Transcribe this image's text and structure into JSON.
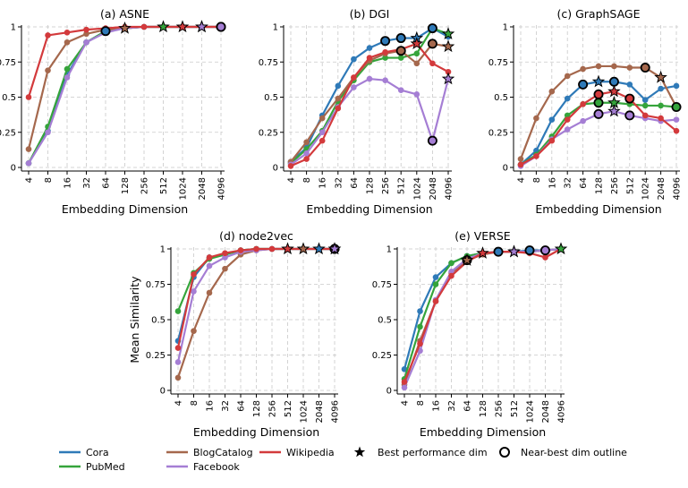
{
  "chart_data": {
    "type": "line",
    "colors": {
      "Cora": "#2f7ab8",
      "PubMed": "#35a43b",
      "BlogCatalog": "#a5684d",
      "Wikipedia": "#d33a3c",
      "Facebook": "#a57ed4"
    },
    "categories": [
      "4",
      "8",
      "16",
      "32",
      "64",
      "128",
      "256",
      "512",
      "1024",
      "2048",
      "4096"
    ],
    "xlabel": "Embedding Dimension",
    "ylabel": "Mean Similarity",
    "ylim": [
      0,
      1
    ],
    "yticks": [
      "0",
      "0.25",
      "0.5",
      "0.75",
      "1"
    ],
    "legend": {
      "series": [
        "Cora",
        "PubMed",
        "BlogCatalog",
        "Facebook",
        "Wikipedia"
      ],
      "best_label": "Best performance dim",
      "near_label": "Near-best dim outline"
    },
    "panels": [
      {
        "title": "(a) ASNE",
        "series": [
          {
            "name": "Cora",
            "values": [
              0.03,
              0.26,
              0.66,
              0.89,
              0.97,
              0.99,
              1.0,
              1.0,
              1.0,
              1.0,
              1.0
            ]
          },
          {
            "name": "PubMed",
            "values": [
              0.03,
              0.29,
              0.7,
              0.89,
              0.97,
              0.99,
              1.0,
              1.0,
              1.0,
              1.0,
              1.0
            ]
          },
          {
            "name": "BlogCatalog",
            "values": [
              0.13,
              0.69,
              0.89,
              0.95,
              0.98,
              0.99,
              1.0,
              1.0,
              1.0,
              1.0,
              1.0
            ]
          },
          {
            "name": "Facebook",
            "values": [
              0.03,
              0.25,
              0.64,
              0.89,
              0.96,
              0.99,
              1.0,
              1.0,
              1.0,
              1.0,
              1.0
            ]
          },
          {
            "name": "Wikipedia",
            "values": [
              0.5,
              0.94,
              0.96,
              0.98,
              0.99,
              1.0,
              1.0,
              1.0,
              1.0,
              1.0,
              1.0
            ]
          }
        ],
        "best": [
          {
            "series": "Cora",
            "index": 9
          },
          {
            "series": "PubMed",
            "index": 7
          },
          {
            "series": "BlogCatalog",
            "index": 5
          },
          {
            "series": "Facebook",
            "index": 9
          },
          {
            "series": "Wikipedia",
            "index": 8
          }
        ],
        "near": [
          {
            "series": "Cora",
            "index": 4
          },
          {
            "series": "BlogCatalog",
            "index": 10
          },
          {
            "series": "Facebook",
            "index": 10
          }
        ]
      },
      {
        "title": "(b) DGI",
        "series": [
          {
            "name": "Cora",
            "values": [
              0.04,
              0.14,
              0.37,
              0.58,
              0.77,
              0.85,
              0.9,
              0.92,
              0.92,
              0.99,
              0.93
            ]
          },
          {
            "name": "PubMed",
            "values": [
              0.03,
              0.13,
              0.26,
              0.47,
              0.62,
              0.75,
              0.78,
              0.78,
              0.81,
              0.99,
              0.95
            ]
          },
          {
            "name": "BlogCatalog",
            "values": [
              0.04,
              0.18,
              0.35,
              0.49,
              0.64,
              0.76,
              0.81,
              0.83,
              0.74,
              0.88,
              0.86
            ]
          },
          {
            "name": "Facebook",
            "values": [
              0.02,
              0.1,
              0.25,
              0.43,
              0.57,
              0.63,
              0.62,
              0.55,
              0.52,
              0.19,
              0.63
            ]
          },
          {
            "name": "Wikipedia",
            "values": [
              0.01,
              0.06,
              0.19,
              0.42,
              0.64,
              0.78,
              0.82,
              0.84,
              0.88,
              0.74,
              0.68
            ]
          }
        ],
        "best": [
          {
            "series": "Cora",
            "index": 8
          },
          {
            "series": "PubMed",
            "index": 10
          },
          {
            "series": "BlogCatalog",
            "index": 10
          },
          {
            "series": "Facebook",
            "index": 10
          },
          {
            "series": "Wikipedia",
            "index": 8
          }
        ],
        "near": [
          {
            "series": "Cora",
            "index": 6
          },
          {
            "series": "Cora",
            "index": 7
          },
          {
            "series": "Cora",
            "index": 9
          },
          {
            "series": "BlogCatalog",
            "index": 7
          },
          {
            "series": "BlogCatalog",
            "index": 9
          },
          {
            "series": "Facebook",
            "index": 9
          }
        ]
      },
      {
        "title": "(c) GraphSAGE",
        "series": [
          {
            "name": "Cora",
            "values": [
              0.02,
              0.12,
              0.34,
              0.49,
              0.59,
              0.61,
              0.61,
              0.59,
              0.48,
              0.56,
              0.58
            ]
          },
          {
            "name": "PubMed",
            "values": [
              0.02,
              0.09,
              0.22,
              0.37,
              0.45,
              0.46,
              0.46,
              0.45,
              0.44,
              0.44,
              0.43
            ]
          },
          {
            "name": "BlogCatalog",
            "values": [
              0.06,
              0.35,
              0.54,
              0.65,
              0.7,
              0.72,
              0.72,
              0.71,
              0.71,
              0.64,
              0.43
            ]
          },
          {
            "name": "Facebook",
            "values": [
              0.01,
              0.08,
              0.2,
              0.27,
              0.33,
              0.38,
              0.4,
              0.37,
              0.35,
              0.33,
              0.34
            ]
          },
          {
            "name": "Wikipedia",
            "values": [
              0.02,
              0.08,
              0.19,
              0.34,
              0.45,
              0.52,
              0.54,
              0.49,
              0.37,
              0.35,
              0.26
            ]
          }
        ],
        "best": [
          {
            "series": "Cora",
            "index": 5
          },
          {
            "series": "PubMed",
            "index": 6
          },
          {
            "series": "BlogCatalog",
            "index": 9
          },
          {
            "series": "Facebook",
            "index": 6
          },
          {
            "series": "Wikipedia",
            "index": 6
          }
        ],
        "near": [
          {
            "series": "Cora",
            "index": 4
          },
          {
            "series": "Cora",
            "index": 6
          },
          {
            "series": "PubMed",
            "index": 5
          },
          {
            "series": "PubMed",
            "index": 10
          },
          {
            "series": "BlogCatalog",
            "index": 8
          },
          {
            "series": "Facebook",
            "index": 5
          },
          {
            "series": "Facebook",
            "index": 7
          },
          {
            "series": "Wikipedia",
            "index": 5
          },
          {
            "series": "Wikipedia",
            "index": 7
          }
        ]
      },
      {
        "title": "(d) node2vec",
        "series": [
          {
            "name": "Cora",
            "values": [
              0.35,
              0.8,
              0.94,
              0.96,
              0.99,
              1.0,
              1.0,
              1.0,
              1.0,
              1.0,
              1.0
            ]
          },
          {
            "name": "PubMed",
            "values": [
              0.56,
              0.83,
              0.93,
              0.96,
              0.99,
              1.0,
              1.0,
              1.0,
              1.0,
              1.0,
              1.0
            ]
          },
          {
            "name": "BlogCatalog",
            "values": [
              0.09,
              0.42,
              0.69,
              0.86,
              0.96,
              0.99,
              1.0,
              1.0,
              1.0,
              1.0,
              1.0
            ]
          },
          {
            "name": "Facebook",
            "values": [
              0.2,
              0.7,
              0.88,
              0.94,
              0.98,
              0.99,
              1.0,
              1.0,
              1.0,
              1.0,
              1.0
            ]
          },
          {
            "name": "Wikipedia",
            "values": [
              0.3,
              0.82,
              0.94,
              0.97,
              0.99,
              1.0,
              1.0,
              1.0,
              1.0,
              1.0,
              1.0
            ]
          }
        ],
        "best": [
          {
            "series": "Cora",
            "index": 9
          },
          {
            "series": "PubMed",
            "index": 10
          },
          {
            "series": "BlogCatalog",
            "index": 8
          },
          {
            "series": "Facebook",
            "index": 10
          },
          {
            "series": "Wikipedia",
            "index": 7
          }
        ],
        "near": [
          {
            "series": "Cora",
            "index": 10
          },
          {
            "series": "BlogCatalog",
            "index": 10
          }
        ]
      },
      {
        "title": "(e) VERSE",
        "series": [
          {
            "name": "Cora",
            "values": [
              0.15,
              0.56,
              0.8,
              0.9,
              0.95,
              0.97,
              0.98,
              0.98,
              0.99,
              0.99,
              1.0
            ]
          },
          {
            "name": "PubMed",
            "values": [
              0.08,
              0.45,
              0.75,
              0.9,
              0.95,
              0.97,
              0.98,
              0.98,
              0.98,
              0.99,
              1.0
            ]
          },
          {
            "name": "BlogCatalog",
            "values": [
              0.04,
              0.35,
              0.63,
              0.83,
              0.92,
              0.96,
              0.98,
              0.98,
              0.98,
              0.99,
              1.0
            ]
          },
          {
            "name": "Facebook",
            "values": [
              0.02,
              0.28,
              0.64,
              0.84,
              0.93,
              0.97,
              0.98,
              0.98,
              0.98,
              0.99,
              1.0
            ]
          },
          {
            "name": "Wikipedia",
            "values": [
              0.06,
              0.33,
              0.63,
              0.81,
              0.91,
              0.97,
              0.98,
              0.98,
              0.97,
              0.94,
              1.0
            ]
          }
        ],
        "best": [
          {
            "series": "Cora",
            "index": 7
          },
          {
            "series": "PubMed",
            "index": 10
          },
          {
            "series": "BlogCatalog",
            "index": 4
          },
          {
            "series": "Facebook",
            "index": 7
          },
          {
            "series": "Wikipedia",
            "index": 5
          }
        ],
        "near": [
          {
            "series": "BlogCatalog",
            "index": 4
          },
          {
            "series": "Cora",
            "index": 6
          },
          {
            "series": "Facebook",
            "index": 9
          },
          {
            "series": "Cora",
            "index": 8
          }
        ]
      }
    ]
  }
}
